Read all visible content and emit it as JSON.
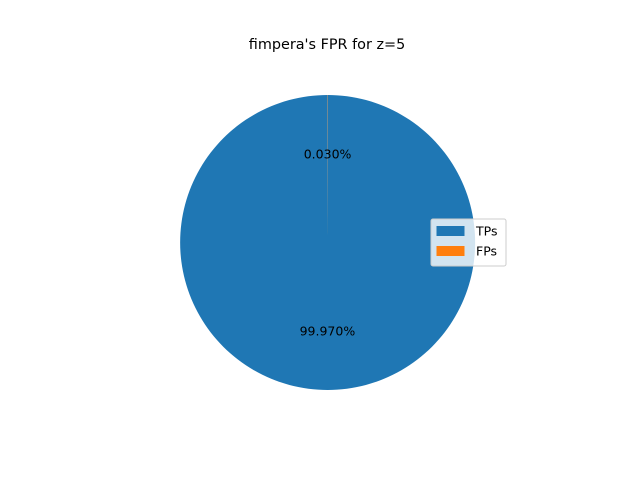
{
  "chart_data": {
    "type": "pie",
    "title": "fimpera's FPR for z=5",
    "categories": [
      "TPs",
      "FPs"
    ],
    "values": [
      99.97,
      0.03
    ],
    "labels": [
      "99.970%",
      "0.030%"
    ],
    "colors": [
      "#1f77b4",
      "#ff7f0e"
    ],
    "legend_position": "center-right"
  }
}
